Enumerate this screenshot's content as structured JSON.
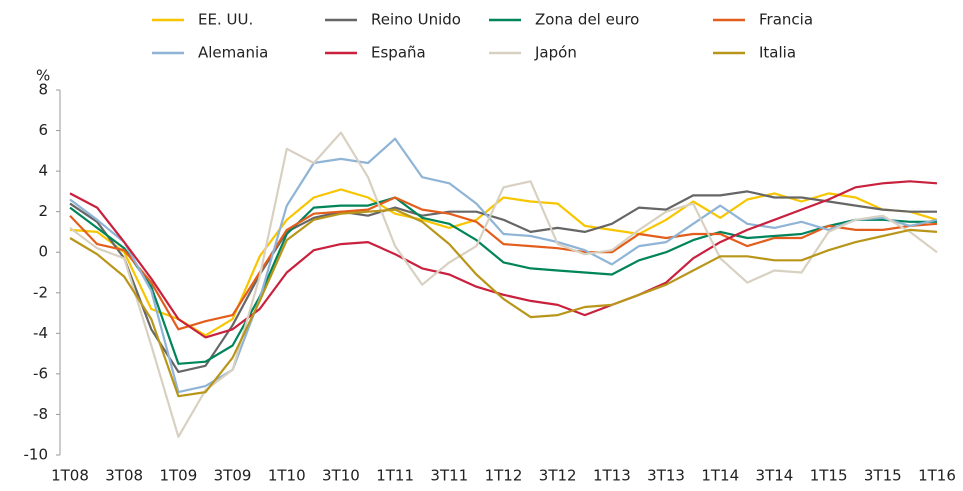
{
  "chart_data": {
    "type": "line",
    "y_unit_label": "%",
    "categories": [
      "1T08",
      null,
      "3T08",
      null,
      "1T09",
      null,
      "3T09",
      null,
      "1T10",
      null,
      "3T10",
      null,
      "1T11",
      null,
      "3T11",
      null,
      "1T12",
      null,
      "3T12",
      null,
      "1T13",
      null,
      "3T13",
      null,
      "1T14",
      null,
      "3T14",
      null,
      "1T15",
      null,
      "3T15",
      null,
      "1T16"
    ],
    "series": [
      {
        "name": "EE. UU.",
        "color": "#f7c600",
        "values": [
          1.1,
          1.0,
          0.0,
          -2.8,
          -3.3,
          -4.1,
          -3.3,
          -0.2,
          1.6,
          2.7,
          3.1,
          2.7,
          1.9,
          1.6,
          1.2,
          1.6,
          2.7,
          2.5,
          2.4,
          1.3,
          1.1,
          0.9,
          1.6,
          2.5,
          1.7,
          2.6,
          2.9,
          2.5,
          2.9,
          2.7,
          2.1,
          2.0,
          1.6
        ]
      },
      {
        "name": "Reino Unido",
        "color": "#666666",
        "values": [
          2.4,
          1.5,
          -0.3,
          -3.8,
          -5.9,
          -5.6,
          -3.6,
          -1.1,
          1.0,
          1.7,
          2.0,
          1.8,
          2.2,
          1.8,
          2.0,
          2.0,
          1.6,
          1.0,
          1.2,
          1.0,
          1.4,
          2.2,
          2.1,
          2.8,
          2.8,
          3.0,
          2.7,
          2.7,
          2.5,
          2.3,
          2.1,
          2.0,
          2.0
        ]
      },
      {
        "name": "Zona del euro",
        "color": "#00845a",
        "values": [
          2.2,
          1.2,
          0.2,
          -1.7,
          -5.5,
          -5.4,
          -4.6,
          -2.2,
          0.9,
          2.2,
          2.3,
          2.3,
          2.7,
          1.7,
          1.4,
          0.6,
          -0.5,
          -0.8,
          -0.9,
          -1.0,
          -1.1,
          -0.4,
          0.0,
          0.6,
          1.0,
          0.7,
          0.8,
          0.9,
          1.3,
          1.6,
          1.6,
          1.5,
          1.5
        ]
      },
      {
        "name": "Francia",
        "color": "#e35d1c",
        "values": [
          1.8,
          0.4,
          0.1,
          -1.5,
          -3.8,
          -3.4,
          -3.1,
          -1.0,
          1.1,
          1.9,
          2.0,
          2.1,
          2.7,
          2.1,
          1.9,
          1.5,
          0.4,
          0.3,
          0.2,
          0.0,
          0.0,
          0.9,
          0.7,
          0.9,
          0.9,
          0.3,
          0.7,
          0.7,
          1.3,
          1.1,
          1.1,
          1.3,
          1.4
        ]
      },
      {
        "name": "Alemania",
        "color": "#8fb4d6",
        "values": [
          2.6,
          1.6,
          0.5,
          -1.9,
          -6.9,
          -6.6,
          -5.8,
          -2.3,
          2.3,
          4.4,
          4.6,
          4.4,
          5.6,
          3.7,
          3.4,
          2.4,
          0.9,
          0.8,
          0.5,
          0.1,
          -0.6,
          0.3,
          0.5,
          1.4,
          2.3,
          1.4,
          1.2,
          1.5,
          1.1,
          1.6,
          1.7,
          1.3,
          1.6
        ]
      },
      {
        "name": "España",
        "color": "#c8203d",
        "values": [
          2.9,
          2.2,
          0.5,
          -1.3,
          -3.3,
          -4.2,
          -3.8,
          -2.8,
          -1.0,
          0.1,
          0.4,
          0.5,
          -0.1,
          -0.8,
          -1.1,
          -1.7,
          -2.1,
          -2.4,
          -2.6,
          -3.1,
          -2.6,
          -2.1,
          -1.5,
          -0.3,
          0.5,
          1.1,
          1.6,
          2.1,
          2.6,
          3.2,
          3.4,
          3.5,
          3.4
        ]
      },
      {
        "name": "Japón",
        "color": "#d8d1c2",
        "values": [
          1.2,
          0.2,
          -0.3,
          -4.6,
          -9.1,
          -6.8,
          -5.8,
          -1.2,
          5.1,
          4.4,
          5.9,
          3.7,
          0.3,
          -1.6,
          -0.5,
          0.3,
          3.2,
          3.5,
          0.4,
          -0.1,
          0.1,
          1.1,
          2.0,
          2.4,
          -0.3,
          -1.5,
          -0.9,
          -1.0,
          1.0,
          1.6,
          1.8,
          1.0,
          0.0
        ]
      },
      {
        "name": "Italia",
        "color": "#b8961a",
        "values": [
          0.7,
          -0.1,
          -1.2,
          -3.3,
          -7.1,
          -6.9,
          -5.2,
          -2.4,
          0.6,
          1.6,
          1.9,
          2.0,
          2.1,
          1.5,
          0.4,
          -1.1,
          -2.3,
          -3.2,
          -3.1,
          -2.7,
          -2.6,
          -2.1,
          -1.6,
          -0.9,
          -0.2,
          -0.2,
          -0.4,
          -0.4,
          0.1,
          0.5,
          0.8,
          1.1,
          1.0
        ]
      }
    ],
    "ylim": [
      -10,
      8
    ],
    "yticks": [
      -10,
      -8,
      -6,
      -4,
      -2,
      0,
      2,
      4,
      6,
      8
    ],
    "grid": false
  }
}
